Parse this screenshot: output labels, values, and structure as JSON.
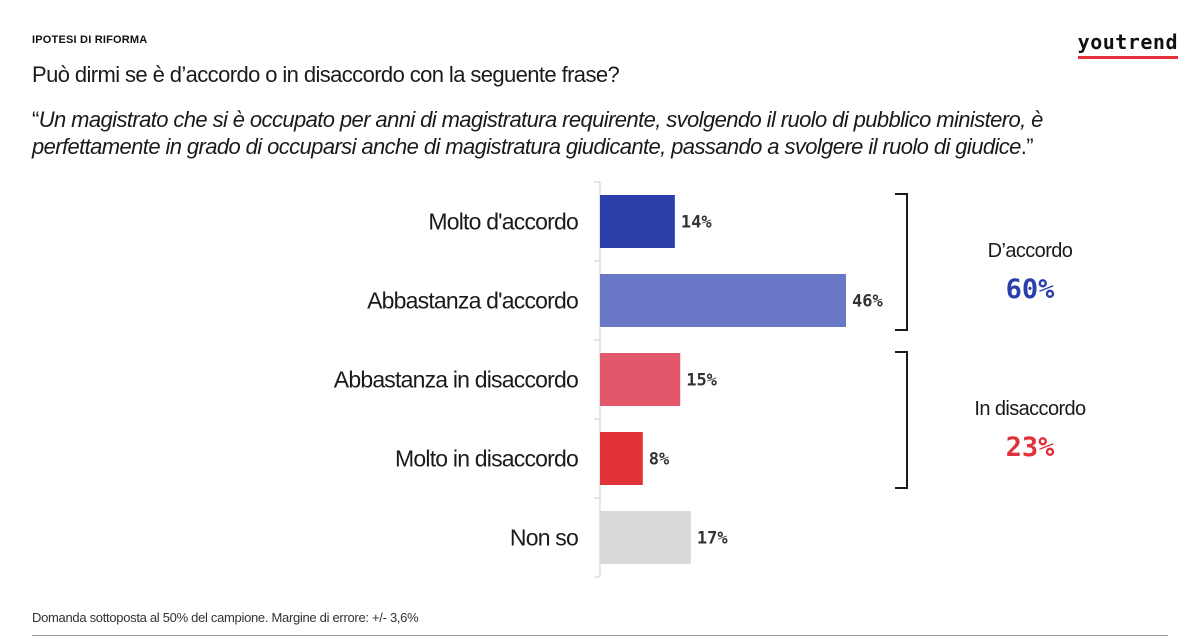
{
  "header": {
    "kicker": "IPOTESI DI RIFORMA",
    "question": "Può dirmi se è d’accordo o in disaccordo con la seguente frase?",
    "quote_open": "“",
    "quote_text": "Un magistrato che si è occupato per anni di magistratura requirente, svolgendo il ruolo di pubblico ministero, è perfettamente in grado di occuparsi anche di magistratura giudicante, passando a svolgere il ruolo di giudice",
    "quote_close": ".”"
  },
  "brand": {
    "logo": "youtrend",
    "accent": "#e3323c"
  },
  "chart_data": {
    "type": "bar",
    "orientation": "horizontal",
    "categories": [
      "Molto d'accordo",
      "Abbastanza d'accordo",
      "Abbastanza in disaccordo",
      "Molto in disaccordo",
      "Non so"
    ],
    "values": [
      14,
      46,
      15,
      8,
      17
    ],
    "value_labels": [
      "14%",
      "46%",
      "15%",
      "8%",
      "17%"
    ],
    "colors": [
      "#2b3fab",
      "#6877c6",
      "#e2586a",
      "#e1323a",
      "#d9d9d9"
    ],
    "xlim": [
      0,
      100
    ],
    "grid": false,
    "groups": [
      {
        "label": "D’accordo",
        "total": "60%",
        "color": "#2b3fab",
        "from": 0,
        "to": 1
      },
      {
        "label": "In disaccordo",
        "total": "23%",
        "color": "#e1323a",
        "from": 2,
        "to": 3
      }
    ]
  },
  "footnote": "Domanda sottoposta al 50% del campione. Margine di errore: +/- 3,6%"
}
